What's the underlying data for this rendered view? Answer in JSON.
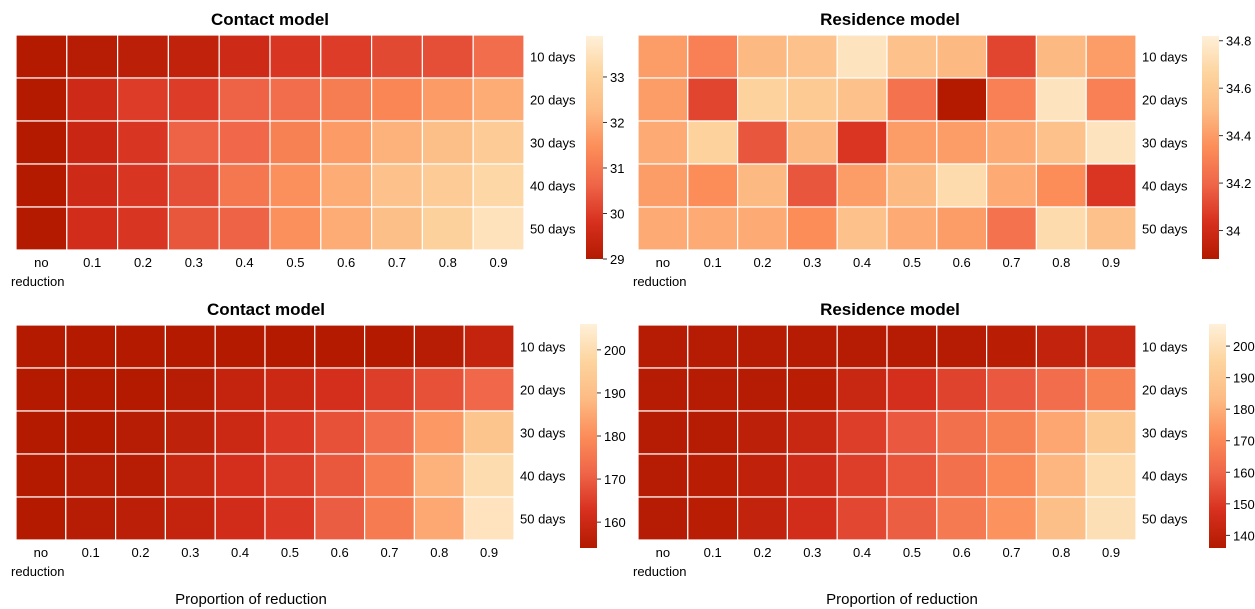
{
  "colors": {
    "colormap": "OrRd_r",
    "stops": [
      "#b31a00",
      "#d7301f",
      "#ef6548",
      "#fc8d59",
      "#fdbb84",
      "#fdd49e",
      "#fef0d9"
    ],
    "grid_lines": "#ffffff"
  },
  "x_axis_label": "Proportion of reduction",
  "chart_data": [
    {
      "type": "heatmap",
      "title": "Contact model",
      "x_categories": [
        "no\nreduction",
        "0.1",
        "0.2",
        "0.3",
        "0.4",
        "0.5",
        "0.6",
        "0.7",
        "0.8",
        "0.9"
      ],
      "y_categories": [
        "10 days",
        "20 days",
        "30 days",
        "40 days",
        "50 days"
      ],
      "values": [
        [
          29.0,
          29.1,
          29.2,
          29.3,
          29.6,
          29.9,
          30.0,
          30.2,
          30.3,
          30.8
        ],
        [
          29.0,
          29.6,
          30.0,
          30.0,
          30.6,
          30.8,
          31.1,
          31.3,
          31.7,
          32.0
        ],
        [
          29.0,
          29.5,
          29.9,
          30.6,
          30.7,
          31.2,
          31.7,
          32.1,
          32.4,
          32.8
        ],
        [
          29.0,
          29.6,
          29.9,
          30.3,
          31.0,
          31.5,
          32.0,
          32.5,
          32.8,
          33.2
        ],
        [
          29.0,
          29.7,
          29.9,
          30.4,
          30.6,
          31.5,
          32.0,
          32.4,
          33.0,
          33.5
        ]
      ],
      "colorbar": {
        "ticks": [
          29,
          30,
          31,
          32,
          33
        ],
        "range": [
          29,
          33.9
        ]
      }
    },
    {
      "type": "heatmap",
      "title": "Residence model",
      "x_categories": [
        "no\nreduction",
        "0.1",
        "0.2",
        "0.3",
        "0.4",
        "0.5",
        "0.6",
        "0.7",
        "0.8",
        "0.9"
      ],
      "y_categories": [
        "10 days",
        "20 days",
        "30 days",
        "40 days",
        "50 days"
      ],
      "values": [
        [
          34.4,
          34.3,
          34.5,
          34.55,
          34.75,
          34.55,
          34.5,
          34.1,
          34.5,
          34.4
        ],
        [
          34.4,
          34.1,
          34.65,
          34.6,
          34.55,
          34.25,
          33.85,
          34.3,
          34.75,
          34.3
        ],
        [
          34.45,
          34.65,
          34.15,
          34.5,
          34.05,
          34.4,
          34.4,
          34.45,
          34.55,
          34.75
        ],
        [
          34.4,
          34.35,
          34.5,
          34.15,
          34.4,
          34.5,
          34.7,
          34.45,
          34.35,
          34.05
        ],
        [
          34.45,
          34.45,
          34.45,
          34.35,
          34.55,
          34.45,
          34.4,
          34.25,
          34.7,
          34.55
        ]
      ],
      "colorbar": {
        "ticks": [
          34,
          34.2,
          34.4,
          34.6,
          34.8
        ],
        "range": [
          33.88,
          34.82
        ]
      }
    },
    {
      "type": "heatmap",
      "title": "Contact model",
      "x_categories": [
        "no\nreduction",
        "0.1",
        "0.2",
        "0.3",
        "0.4",
        "0.5",
        "0.6",
        "0.7",
        "0.8",
        "0.9"
      ],
      "y_categories": [
        "10 days",
        "20 days",
        "30 days",
        "40 days",
        "50 days"
      ],
      "values": [
        [
          154,
          154,
          154,
          154,
          154,
          154,
          154,
          154,
          155,
          158
        ],
        [
          154,
          154,
          154,
          155,
          158,
          160,
          162,
          165,
          168,
          172
        ],
        [
          154,
          154,
          155,
          157,
          160,
          164,
          168,
          173,
          182,
          192
        ],
        [
          154,
          155,
          155,
          159,
          162,
          165,
          169,
          176,
          187,
          200
        ],
        [
          154,
          155,
          156,
          158,
          161,
          164,
          170,
          176,
          185,
          202
        ]
      ],
      "colorbar": {
        "ticks": [
          160,
          170,
          180,
          190,
          200
        ],
        "range": [
          154,
          206
        ]
      }
    },
    {
      "type": "heatmap",
      "title": "Residence model",
      "x_categories": [
        "no\nreduction",
        "0.1",
        "0.2",
        "0.3",
        "0.4",
        "0.5",
        "0.6",
        "0.7",
        "0.8",
        "0.9"
      ],
      "y_categories": [
        "10 days",
        "20 days",
        "30 days",
        "40 days",
        "50 days"
      ],
      "values": [
        [
          137,
          137,
          137,
          137,
          137,
          137,
          137,
          138,
          141,
          143
        ],
        [
          137,
          137,
          137,
          138,
          143,
          147,
          152,
          157,
          162,
          168
        ],
        [
          137,
          137,
          139,
          143,
          151,
          157,
          163,
          168,
          178,
          190
        ],
        [
          137,
          138,
          140,
          145,
          151,
          156,
          163,
          170,
          182,
          198
        ],
        [
          137,
          138,
          141,
          146,
          153,
          158,
          166,
          173,
          185,
          200
        ]
      ],
      "colorbar": {
        "ticks": [
          140,
          150,
          160,
          170,
          180,
          190,
          200
        ],
        "range": [
          136,
          207
        ]
      }
    }
  ]
}
